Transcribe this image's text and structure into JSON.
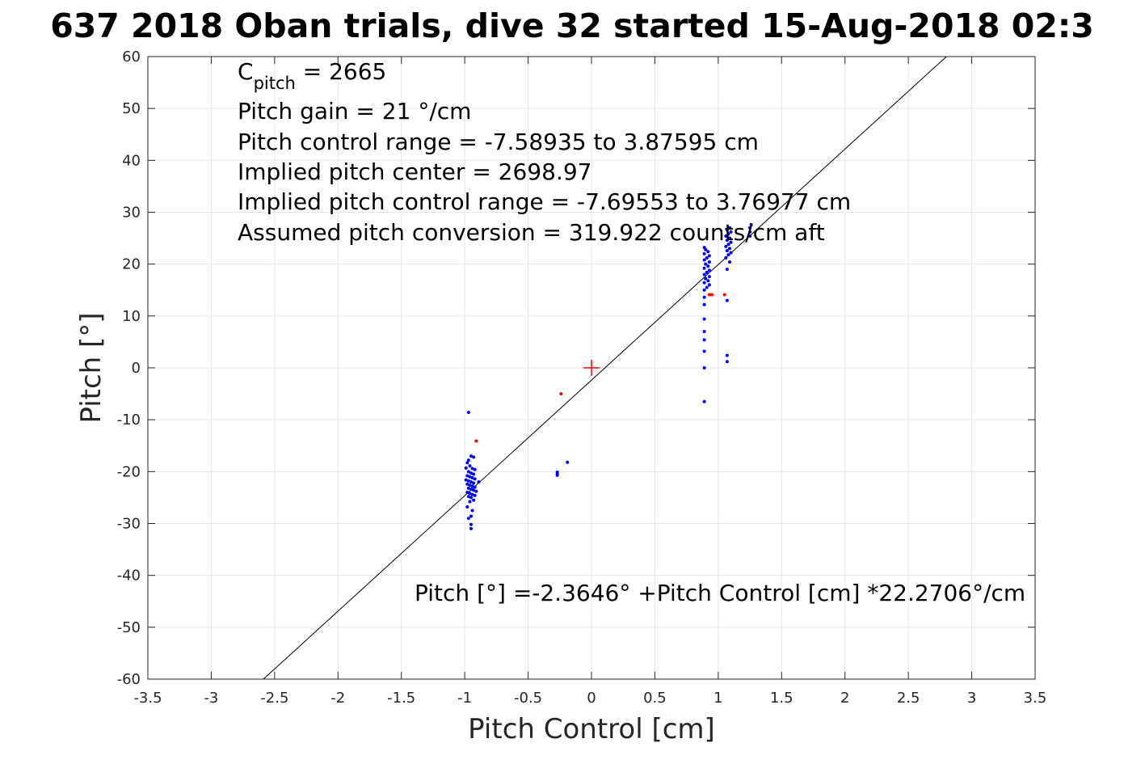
{
  "chart_data": {
    "type": "scatter",
    "title": "637 2018 Oban trials, dive 32 started 15-Aug-2018 02:3",
    "xlabel": "Pitch Control [cm]",
    "ylabel": "Pitch [°]",
    "xlim": [
      -3.5,
      3.5
    ],
    "ylim": [
      -60,
      60
    ],
    "xticks": [
      -3.5,
      -3,
      -2.5,
      -2,
      -1.5,
      -1,
      -0.5,
      0,
      0.5,
      1,
      1.5,
      2,
      2.5,
      3,
      3.5
    ],
    "xtick_labels": [
      "-3.5",
      "-3",
      "-2.5",
      "-2",
      "-1.5",
      "-1",
      "-0.5",
      "0",
      "0.5",
      "1",
      "1.5",
      "2",
      "2.5",
      "3",
      "3.5"
    ],
    "yticks": [
      -60,
      -50,
      -40,
      -30,
      -20,
      -10,
      0,
      10,
      20,
      30,
      40,
      50,
      60
    ],
    "ytick_labels": [
      "-60",
      "-50",
      "-40",
      "-30",
      "-20",
      "-10",
      "0",
      "10",
      "20",
      "30",
      "40",
      "50",
      "60"
    ],
    "grid": true,
    "colors": {
      "good": "#0000ff",
      "rejected": "#ff0000",
      "fit": "#000000",
      "center": "#ff0000"
    },
    "fit_line": {
      "intercept": -2.3646,
      "slope": 22.2706
    },
    "center_marker": {
      "x": 0,
      "y": 0
    },
    "annotations": {
      "cpitch_main": "C",
      "cpitch_sub": "pitch",
      "cpitch_value": " = 2665",
      "gain": "Pitch gain = 21 °/cm",
      "control_range": "Pitch control range = -7.58935 to 3.87595 cm",
      "implied_center": "Implied pitch center = 2698.97",
      "implied_range": "Implied pitch control range = -7.69553 to 3.76977 cm",
      "conversion": "Assumed pitch conversion = 319.922 counts/cm aft",
      "fit_equation": "Pitch [°] =-2.3646° +Pitch Control [cm] *22.2706°/cm"
    },
    "series": [
      {
        "color": "#0000ff",
        "points": [
          [
            -0.97,
            -8.6
          ],
          [
            -0.95,
            -17.0
          ],
          [
            -0.93,
            -17.2
          ],
          [
            -0.97,
            -17.8
          ],
          [
            -0.98,
            -18.3
          ],
          [
            -0.96,
            -18.9
          ],
          [
            -0.99,
            -19.3
          ],
          [
            -0.94,
            -19.4
          ],
          [
            -0.92,
            -19.6
          ],
          [
            -0.97,
            -20.0
          ],
          [
            -0.95,
            -20.3
          ],
          [
            -0.93,
            -20.5
          ],
          [
            -0.98,
            -20.8
          ],
          [
            -0.96,
            -21.0
          ],
          [
            -0.94,
            -21.2
          ],
          [
            -0.92,
            -21.4
          ],
          [
            -0.99,
            -21.6
          ],
          [
            -0.97,
            -21.8
          ],
          [
            -0.95,
            -22.0
          ],
          [
            -0.93,
            -22.2
          ],
          [
            -0.89,
            -22.0
          ],
          [
            -0.98,
            -22.4
          ],
          [
            -0.96,
            -22.6
          ],
          [
            -0.94,
            -22.8
          ],
          [
            -0.92,
            -23.0
          ],
          [
            -0.97,
            -23.2
          ],
          [
            -0.95,
            -23.4
          ],
          [
            -0.93,
            -23.6
          ],
          [
            -0.91,
            -23.8
          ],
          [
            -0.98,
            -24.0
          ],
          [
            -0.96,
            -24.2
          ],
          [
            -0.94,
            -24.4
          ],
          [
            -0.92,
            -24.6
          ],
          [
            -0.97,
            -24.8
          ],
          [
            -0.95,
            -25.0
          ],
          [
            -0.93,
            -25.5
          ],
          [
            -0.96,
            -25.8
          ],
          [
            -0.98,
            -26.8
          ],
          [
            -0.94,
            -27.5
          ],
          [
            -0.95,
            -28.6
          ],
          [
            -0.97,
            -29.0
          ],
          [
            -0.95,
            -30.2
          ],
          [
            -0.95,
            -31.0
          ],
          [
            -0.27,
            -20.1
          ],
          [
            -0.27,
            -20.4
          ],
          [
            -0.27,
            -20.7
          ],
          [
            -0.19,
            -18.2
          ],
          [
            0.89,
            0.0
          ],
          [
            0.89,
            -6.5
          ],
          [
            0.89,
            3.2
          ],
          [
            0.89,
            5.4
          ],
          [
            0.89,
            7.0
          ],
          [
            0.89,
            9.4
          ],
          [
            0.89,
            12.2
          ],
          [
            0.89,
            13.6
          ],
          [
            0.89,
            15.0
          ],
          [
            0.91,
            15.5
          ],
          [
            0.93,
            16.0
          ],
          [
            0.89,
            16.4
          ],
          [
            0.92,
            16.8
          ],
          [
            0.9,
            17.2
          ],
          [
            0.93,
            17.6
          ],
          [
            0.89,
            18.0
          ],
          [
            0.91,
            18.4
          ],
          [
            0.93,
            18.8
          ],
          [
            0.89,
            19.2
          ],
          [
            0.92,
            19.6
          ],
          [
            0.9,
            20.0
          ],
          [
            0.93,
            20.4
          ],
          [
            0.89,
            20.8
          ],
          [
            0.91,
            21.2
          ],
          [
            0.93,
            21.6
          ],
          [
            0.89,
            22.0
          ],
          [
            0.92,
            22.4
          ],
          [
            0.9,
            22.8
          ],
          [
            0.89,
            23.2
          ],
          [
            1.07,
            1.2
          ],
          [
            1.07,
            2.4
          ],
          [
            1.07,
            13.0
          ],
          [
            1.07,
            19.0
          ],
          [
            1.09,
            20.4
          ],
          [
            1.06,
            21.2
          ],
          [
            1.08,
            21.8
          ],
          [
            1.1,
            22.2
          ],
          [
            1.07,
            22.6
          ],
          [
            1.09,
            23.0
          ],
          [
            1.06,
            23.4
          ],
          [
            1.08,
            23.8
          ],
          [
            1.1,
            24.2
          ],
          [
            1.07,
            24.6
          ],
          [
            1.09,
            25.0
          ],
          [
            1.06,
            25.4
          ],
          [
            1.08,
            25.8
          ],
          [
            1.1,
            26.2
          ],
          [
            1.07,
            26.6
          ],
          [
            1.09,
            27.0
          ],
          [
            1.25,
            25.4
          ],
          [
            1.25,
            26.2
          ],
          [
            1.25,
            27.0
          ],
          [
            1.26,
            27.6
          ]
        ]
      },
      {
        "color": "#ff0000",
        "points": [
          [
            -0.91,
            -14.1
          ],
          [
            -0.24,
            -5.0
          ],
          [
            0.93,
            14.1
          ],
          [
            0.95,
            14.1
          ],
          [
            1.05,
            14.1
          ]
        ]
      }
    ]
  }
}
